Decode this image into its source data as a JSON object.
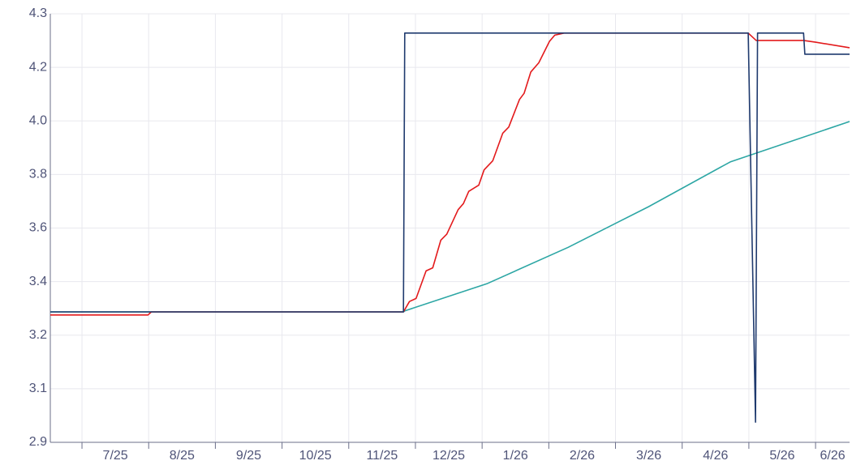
{
  "chart_data": {
    "type": "line",
    "xlim": [
      -0.475,
      11.51
    ],
    "ylim": [
      2.9,
      4.3
    ],
    "xticks": [
      {
        "value": 0,
        "label": "7/25"
      },
      {
        "value": 1,
        "label": "8/25"
      },
      {
        "value": 2,
        "label": "9/25"
      },
      {
        "value": 3,
        "label": "10/25"
      },
      {
        "value": 4,
        "label": "11/25"
      },
      {
        "value": 5,
        "label": "12/25"
      },
      {
        "value": 6,
        "label": "1/26"
      },
      {
        "value": 7,
        "label": "2/26"
      },
      {
        "value": 8,
        "label": "3/26"
      },
      {
        "value": 9,
        "label": "4/26"
      },
      {
        "value": 10,
        "label": "5/26"
      },
      {
        "value": 11,
        "label": "6/26"
      }
    ],
    "yticks": [
      {
        "value": 2.9,
        "label": "2.9"
      },
      {
        "value": 3.075,
        "label": "3.1"
      },
      {
        "value": 3.25,
        "label": "3.2"
      },
      {
        "value": 3.425,
        "label": "3.4"
      },
      {
        "value": 3.6,
        "label": "3.6"
      },
      {
        "value": 3.775,
        "label": "3.8"
      },
      {
        "value": 3.95,
        "label": "4.0"
      },
      {
        "value": 4.125,
        "label": "4.2"
      },
      {
        "value": 4.3,
        "label": "4.3"
      }
    ],
    "grid": true,
    "series": [
      {
        "color": "#2ca6a4",
        "x": [
          -0.475,
          4.82,
          4.85,
          6.07,
          7.29,
          8.5,
          9.72,
          11.51
        ],
        "values": [
          3.326,
          3.326,
          3.33,
          3.418,
          3.537,
          3.67,
          3.816,
          3.948
        ]
      },
      {
        "color": "#e31a1c",
        "x": [
          -0.475,
          0.99,
          1.04,
          4.82,
          4.91,
          5.01,
          5.16,
          5.26,
          5.38,
          5.47,
          5.64,
          5.72,
          5.8,
          5.95,
          6.03,
          6.16,
          6.31,
          6.4,
          6.56,
          6.63,
          6.73,
          6.85,
          7.01,
          7.09,
          7.23,
          9.99,
          10.11,
          10.82,
          11.0,
          11.51
        ],
        "values": [
          3.316,
          3.316,
          3.326,
          3.326,
          3.36,
          3.37,
          3.46,
          3.47,
          3.56,
          3.58,
          3.66,
          3.68,
          3.72,
          3.74,
          3.79,
          3.82,
          3.91,
          3.93,
          4.02,
          4.04,
          4.11,
          4.14,
          4.21,
          4.23,
          4.237,
          4.237,
          4.213,
          4.213,
          4.207,
          4.189
        ]
      },
      {
        "color": "#1f3a6e",
        "x": [
          -0.475,
          4.82,
          4.84,
          9.99,
          10.1,
          10.13,
          10.82,
          10.84,
          11.51
        ],
        "values": [
          3.326,
          3.326,
          4.237,
          4.237,
          2.966,
          4.237,
          4.237,
          4.168,
          4.168
        ]
      }
    ]
  }
}
